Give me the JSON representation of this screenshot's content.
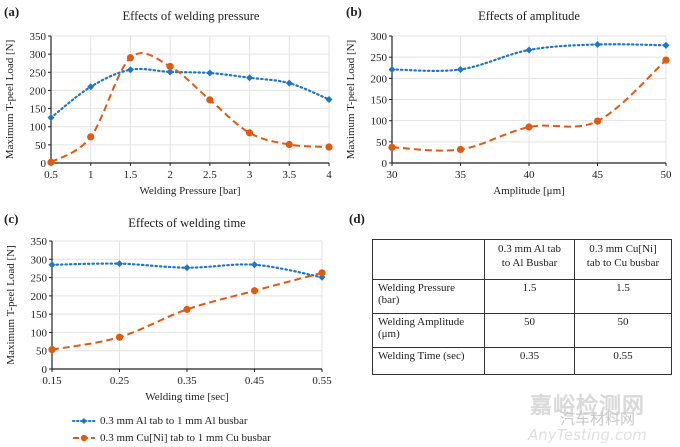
{
  "legend": [
    {
      "name": "0.3 mm Al tab to 1 mm Al busbar",
      "color": "#1f77c4",
      "style": "dotted",
      "marker": "diamond"
    },
    {
      "name": "0.3 mm Cu[Ni] tab to 1 mm Cu busbar",
      "color": "#e05a10",
      "style": "dashed",
      "marker": "circle"
    }
  ],
  "chart_data": [
    {
      "panel": "(a)",
      "type": "line",
      "title": "Effects of welding pressure",
      "xlabel": "Welding Pressure [bar]",
      "ylabel": "Maximum  T-peel Load [N]",
      "x": [
        0.5,
        1,
        1.5,
        2,
        2.5,
        3,
        3.5,
        4
      ],
      "x_tick_labels": [
        "0.5",
        "1",
        "1.5",
        "2",
        "2.5",
        "3",
        "3.5",
        "4"
      ],
      "xlim": [
        0.5,
        4
      ],
      "ylim": [
        0,
        350
      ],
      "y_ticks": [
        0,
        50,
        100,
        150,
        200,
        250,
        300,
        350
      ],
      "grid": true,
      "series": [
        {
          "name": "0.3 mm Al tab to 1 mm Al busbar",
          "values": [
            125,
            210,
            257,
            251,
            248,
            235,
            220,
            175
          ]
        },
        {
          "name": "0.3 mm Cu[Ni] tab to 1 mm Cu busbar",
          "values": [
            2,
            72,
            290,
            266,
            174,
            83,
            51,
            44
          ]
        }
      ]
    },
    {
      "panel": "(b)",
      "type": "line",
      "title": "Effects of amplitude",
      "xlabel": "Amplitude [μm]",
      "ylabel": "Maximum  T-peel Load [N]",
      "x": [
        30,
        35,
        40,
        45,
        50
      ],
      "x_tick_labels": [
        "30",
        "35",
        "40",
        "45",
        "50"
      ],
      "xlim": [
        30,
        50
      ],
      "ylim": [
        0,
        300
      ],
      "y_ticks": [
        0,
        50,
        100,
        150,
        200,
        250,
        300
      ],
      "grid": true,
      "series": [
        {
          "name": "0.3 mm Al tab to 1 mm Al busbar",
          "values": [
            221,
            221,
            267,
            280,
            278
          ]
        },
        {
          "name": "0.3 mm Cu[Ni] tab to 1 mm Cu busbar",
          "values": [
            37,
            32,
            85,
            99,
            243
          ]
        }
      ]
    },
    {
      "panel": "(c)",
      "type": "line",
      "title": "Effects of welding time",
      "xlabel": "Welding time [sec]",
      "ylabel": "Maximum  T-peel Load [N]",
      "x": [
        0.15,
        0.25,
        0.35,
        0.45,
        0.55
      ],
      "x_tick_labels": [
        "0.15",
        "0.25",
        "0.35",
        "0.45",
        "0.55"
      ],
      "xlim": [
        0.15,
        0.55
      ],
      "ylim": [
        0,
        350
      ],
      "y_ticks": [
        0,
        50,
        100,
        150,
        200,
        250,
        300,
        350
      ],
      "grid": true,
      "series": [
        {
          "name": "0.3 mm Al tab to 1 mm Al busbar",
          "values": [
            285,
            288,
            277,
            285,
            251
          ]
        },
        {
          "name": "0.3 mm Cu[Ni] tab to 1 mm Cu busbar",
          "values": [
            53,
            87,
            163,
            214,
            263
          ]
        }
      ]
    },
    {
      "panel": "(d)",
      "type": "table",
      "columns": [
        "",
        "0.3 mm Al tab to Al Busbar",
        "0.3 mm Cu[Ni] tab to Cu busbar"
      ],
      "rows": [
        [
          "Welding Pressure (bar)",
          "1.5",
          "1.5"
        ],
        [
          "Welding Amplitude (μm)",
          "50",
          "50"
        ],
        [
          "Welding Time (sec)",
          "0.35",
          "0.55"
        ]
      ]
    }
  ],
  "table_d": {
    "header": [
      "",
      "0.3 mm Al tab to Al Busbar",
      "0.3 mm Cu[Ni] tab to Cu busbar"
    ],
    "header_lines": [
      [
        "0.3 mm Al tab",
        "to Al Busbar"
      ],
      [
        "0.3 mm Cu[Ni]",
        "tab to Cu busbar"
      ]
    ],
    "rows": [
      {
        "label_lines": [
          "Welding Pressure",
          "(bar)"
        ],
        "al": "1.5",
        "cu": "1.5"
      },
      {
        "label_lines": [
          "Welding Amplitude",
          "(μm)"
        ],
        "al": "50",
        "cu": "50"
      },
      {
        "label_lines": [
          "Welding Time (sec)",
          ""
        ],
        "al": "0.35",
        "cu": "0.55"
      }
    ]
  },
  "watermark": {
    "cn_main": "嘉峪检测网",
    "cn_sub": "汽车材料网",
    "en": "AnyTesting.com"
  }
}
